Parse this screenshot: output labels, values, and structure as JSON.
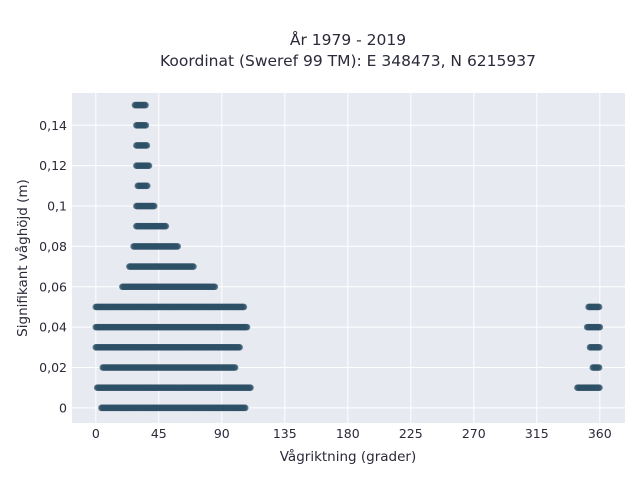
{
  "chart_data": {
    "type": "scatter",
    "title": "År 1979 - 2019",
    "subtitle": "Koordinat (Sweref 99 TM): E 348473, N 6215937",
    "xlabel": "Vågriktning (grader)",
    "ylabel": "Signifikant våghöjd (m)",
    "xlim": [
      -17,
      378
    ],
    "ylim": [
      -0.0075,
      0.156
    ],
    "x_ticks": [
      0,
      45,
      90,
      135,
      180,
      225,
      270,
      315,
      360
    ],
    "x_tick_labels": [
      "0",
      "45",
      "90",
      "135",
      "180",
      "225",
      "270",
      "315",
      "360"
    ],
    "y_ticks": [
      0,
      0.02,
      0.04,
      0.06,
      0.08,
      0.1,
      0.12,
      0.14
    ],
    "y_tick_labels": [
      "0",
      "0,02",
      "0,04",
      "0,06",
      "0,08",
      "0,1",
      "0,12",
      "0,14"
    ],
    "grid": true,
    "marker_color": "#2e5066",
    "plot_background": "#e8eaf2",
    "clusters": [
      {
        "height": 0.15,
        "direction_range": [
          28,
          36
        ]
      },
      {
        "height": 0.14,
        "direction_range": [
          29,
          36
        ]
      },
      {
        "height": 0.13,
        "direction_range": [
          29,
          37
        ]
      },
      {
        "height": 0.12,
        "direction_range": [
          29,
          38
        ]
      },
      {
        "height": 0.11,
        "direction_range": [
          30,
          37
        ]
      },
      {
        "height": 0.1,
        "direction_range": [
          29,
          42
        ]
      },
      {
        "height": 0.09,
        "direction_range": [
          29,
          50
        ]
      },
      {
        "height": 0.08,
        "direction_range": [
          27,
          59
        ]
      },
      {
        "height": 0.07,
        "direction_range": [
          24,
          70
        ]
      },
      {
        "height": 0.06,
        "direction_range": [
          19,
          85
        ]
      },
      {
        "height": 0.05,
        "direction_range": [
          0,
          106
        ]
      },
      {
        "height": 0.05,
        "direction_range": [
          352,
          360
        ]
      },
      {
        "height": 0.04,
        "direction_range": [
          0,
          108
        ]
      },
      {
        "height": 0.04,
        "direction_range": [
          351,
          360
        ]
      },
      {
        "height": 0.03,
        "direction_range": [
          0,
          103
        ]
      },
      {
        "height": 0.03,
        "direction_range": [
          353,
          360
        ]
      },
      {
        "height": 0.02,
        "direction_range": [
          5,
          100
        ]
      },
      {
        "height": 0.02,
        "direction_range": [
          355,
          360
        ]
      },
      {
        "height": 0.01,
        "direction_range": [
          1,
          111
        ]
      },
      {
        "height": 0.01,
        "direction_range": [
          344,
          360
        ]
      },
      {
        "height": 0.0,
        "direction_range": [
          4,
          107
        ]
      }
    ]
  }
}
